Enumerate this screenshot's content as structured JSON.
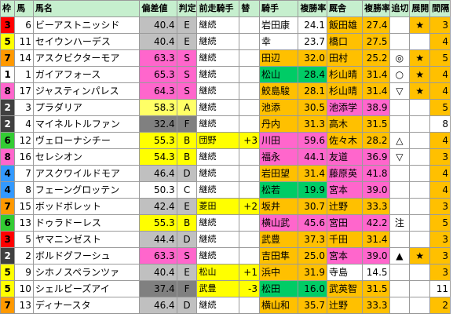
{
  "headers": [
    "枠",
    "馬",
    "馬名",
    "偏差値",
    "判定",
    "前走騎手",
    "替",
    "騎手",
    "複勝率",
    "厩舎",
    "複勝率",
    "追切",
    "展開",
    "間隔"
  ],
  "colors": {
    "header_bg": "#c6efce",
    "waku": {
      "1": "#ffffff",
      "2": "#404040",
      "3": "#ff0000",
      "4": "#3399ff",
      "5": "#ffff00",
      "6": "#33cc33",
      "7": "#ff9900",
      "8": "#ff66cc"
    },
    "rating": {
      "S": "#ff66cc",
      "A": "#ffff66",
      "B": "#ffff00",
      "C": "#ffffff",
      "D": "#c0c0c0",
      "E": "#c0c0c0",
      "F": "#808080"
    },
    "prev_continue": "#ffffff",
    "prev_changed": "#ffff00",
    "jockey_orange": "#ffc000",
    "jockey_pink": "#ff66cc",
    "jockey_green": "#00cc66",
    "jockey_white": "#ffffff",
    "trainer_orange": "#ffc000",
    "trainer_pink": "#ff66cc",
    "trainer_green": "#00cc66",
    "trainer_white": "#ffffff",
    "tenkai_orange": "#ffc000",
    "kankaku_orange": "#ffc000"
  },
  "rows": [
    {
      "waku": "3",
      "num": "6",
      "name": "ビーアストニッシド",
      "score": "40.4",
      "rank": "E",
      "prev": "継続",
      "change": "",
      "jockey": "岩田康",
      "jrate": "24.1",
      "trainer": "飯田雄",
      "trate": "27.4",
      "oikiri": "",
      "tenkai": "★",
      "kankaku": "3",
      "jc": "white",
      "tc": "orange",
      "tk": true,
      "kk": true
    },
    {
      "waku": "5",
      "num": "11",
      "name": "セイウンハーデス",
      "score": "40.4",
      "rank": "E",
      "prev": "継続",
      "change": "",
      "jockey": "幸",
      "jrate": "23.7",
      "trainer": "橋口",
      "trate": "27.5",
      "oikiri": "",
      "tenkai": "",
      "kankaku": "4",
      "jc": "white",
      "tc": "orange",
      "tk": false,
      "kk": true
    },
    {
      "waku": "7",
      "num": "14",
      "name": "アスクビクターモア",
      "score": "63.3",
      "rank": "S",
      "prev": "継続",
      "change": "",
      "jockey": "田辺",
      "jrate": "32.0",
      "trainer": "田村",
      "trate": "25.2",
      "oikiri": "◎",
      "tenkai": "★",
      "kankaku": "5",
      "jc": "orange",
      "tc": "orange",
      "tk": true,
      "kk": true
    },
    {
      "waku": "1",
      "num": "1",
      "name": "ガイアフォース",
      "score": "65.3",
      "rank": "S",
      "prev": "継続",
      "change": "",
      "jockey": "松山",
      "jrate": "28.4",
      "trainer": "杉山晴",
      "trate": "31.4",
      "oikiri": "○",
      "tenkai": "★",
      "kankaku": "4",
      "jc": "green",
      "tc": "orange",
      "tk": true,
      "kk": true
    },
    {
      "waku": "8",
      "num": "17",
      "name": "ジャスティンパレス",
      "score": "64.3",
      "rank": "S",
      "prev": "継続",
      "change": "",
      "jockey": "鮫島駿",
      "jrate": "28.1",
      "trainer": "杉山晴",
      "trate": "31.4",
      "oikiri": "▽",
      "tenkai": "★",
      "kankaku": "4",
      "jc": "orange",
      "tc": "orange",
      "tk": true,
      "kk": true
    },
    {
      "waku": "2",
      "num": "3",
      "name": "プラダリア",
      "score": "58.3",
      "rank": "A",
      "prev": "継続",
      "change": "",
      "jockey": "池添",
      "jrate": "30.5",
      "trainer": "池添学",
      "trate": "38.9",
      "oikiri": "",
      "tenkai": "",
      "kankaku": "5",
      "jc": "orange",
      "tc": "pink",
      "tk": false,
      "kk": true
    },
    {
      "waku": "2",
      "num": "4",
      "name": "マイネルトルファン",
      "score": "32.4",
      "rank": "F",
      "prev": "継続",
      "change": "",
      "jockey": "丹内",
      "jrate": "31.3",
      "trainer": "高木",
      "trate": "31.5",
      "oikiri": "",
      "tenkai": "",
      "kankaku": "8",
      "jc": "orange",
      "tc": "orange",
      "tk": false,
      "kk": false
    },
    {
      "waku": "6",
      "num": "12",
      "name": "ヴェローナシチー",
      "score": "55.3",
      "rank": "B",
      "prev": "団野",
      "change": "+3",
      "jockey": "川田",
      "jrate": "59.6",
      "trainer": "佐々木",
      "trate": "28.2",
      "oikiri": "△",
      "tenkai": "",
      "kankaku": "4",
      "jc": "pink",
      "tc": "orange",
      "tk": false,
      "kk": true
    },
    {
      "waku": "8",
      "num": "16",
      "name": "セレシオン",
      "score": "54.3",
      "rank": "B",
      "prev": "継続",
      "change": "",
      "jockey": "福永",
      "jrate": "44.1",
      "trainer": "友道",
      "trate": "36.9",
      "oikiri": "▽",
      "tenkai": "",
      "kankaku": "3",
      "jc": "pink",
      "tc": "pink",
      "tk": false,
      "kk": true
    },
    {
      "waku": "4",
      "num": "7",
      "name": "アスクワイルドモア",
      "score": "46.4",
      "rank": "D",
      "prev": "継続",
      "change": "",
      "jockey": "岩田望",
      "jrate": "31.4",
      "trainer": "藤原英",
      "trate": "41.8",
      "oikiri": "",
      "tenkai": "",
      "kankaku": "4",
      "jc": "orange",
      "tc": "pink",
      "tk": false,
      "kk": true
    },
    {
      "waku": "4",
      "num": "8",
      "name": "フェーングロッテン",
      "score": "50.3",
      "rank": "C",
      "prev": "継続",
      "change": "",
      "jockey": "松若",
      "jrate": "19.9",
      "trainer": "宮本",
      "trate": "39.0",
      "oikiri": "",
      "tenkai": "",
      "kankaku": "4",
      "jc": "green",
      "tc": "pink",
      "tk": false,
      "kk": true
    },
    {
      "waku": "7",
      "num": "15",
      "name": "ボッドボレット",
      "score": "42.4",
      "rank": "E",
      "prev": "菱田",
      "change": "+2",
      "jockey": "坂井",
      "jrate": "30.7",
      "trainer": "辻野",
      "trate": "33.3",
      "oikiri": "",
      "tenkai": "",
      "kankaku": "3",
      "jc": "orange",
      "tc": "orange",
      "tk": false,
      "kk": true
    },
    {
      "waku": "6",
      "num": "13",
      "name": "ドゥラドーレス",
      "score": "55.3",
      "rank": "B",
      "prev": "継続",
      "change": "",
      "jockey": "横山武",
      "jrate": "45.6",
      "trainer": "宮田",
      "trate": "42.2",
      "oikiri": "注",
      "tenkai": "",
      "kankaku": "5",
      "jc": "pink",
      "tc": "pink",
      "tk": false,
      "kk": true
    },
    {
      "waku": "3",
      "num": "5",
      "name": "ヤマニンゼスト",
      "score": "44.4",
      "rank": "D",
      "prev": "継続",
      "change": "",
      "jockey": "武豊",
      "jrate": "37.3",
      "trainer": "千田",
      "trate": "31.4",
      "oikiri": "",
      "tenkai": "",
      "kankaku": "3",
      "jc": "orange",
      "tc": "orange",
      "tk": false,
      "kk": true
    },
    {
      "waku": "2",
      "num": "2",
      "name": "ボルドグフーシュ",
      "score": "63.3",
      "rank": "S",
      "prev": "継続",
      "change": "",
      "jockey": "吉田隼",
      "jrate": "25.0",
      "trainer": "宮本",
      "trate": "39.0",
      "oikiri": "▲",
      "tenkai": "★",
      "kankaku": "3",
      "jc": "orange",
      "tc": "pink",
      "tk": true,
      "kk": true
    },
    {
      "waku": "5",
      "num": "9",
      "name": "シホノスペランツァ",
      "score": "40.4",
      "rank": "E",
      "prev": "松山",
      "change": "+1",
      "jockey": "浜中",
      "jrate": "31.9",
      "trainer": "寺島",
      "trate": "14.5",
      "oikiri": "",
      "tenkai": "",
      "kankaku": "3",
      "jc": "orange",
      "tc": "white",
      "tk": false,
      "kk": true
    },
    {
      "waku": "5",
      "num": "10",
      "name": "シェルビーズアイ",
      "score": "37.4",
      "rank": "F",
      "prev": "武豊",
      "change": "-3",
      "jockey": "松田",
      "jrate": "16.0",
      "trainer": "武英智",
      "trate": "31.5",
      "oikiri": "",
      "tenkai": "",
      "kankaku": "11",
      "jc": "green",
      "tc": "orange",
      "tk": false,
      "kk": false
    },
    {
      "waku": "7",
      "num": "13",
      "name": "ディナースタ",
      "score": "46.4",
      "rank": "D",
      "prev": "継続",
      "change": "",
      "jockey": "横山和",
      "jrate": "35.7",
      "trainer": "辻野",
      "trate": "33.3",
      "oikiri": "",
      "tenkai": "",
      "kankaku": "2",
      "jc": "orange",
      "tc": "orange",
      "tk": false,
      "kk": true
    }
  ]
}
